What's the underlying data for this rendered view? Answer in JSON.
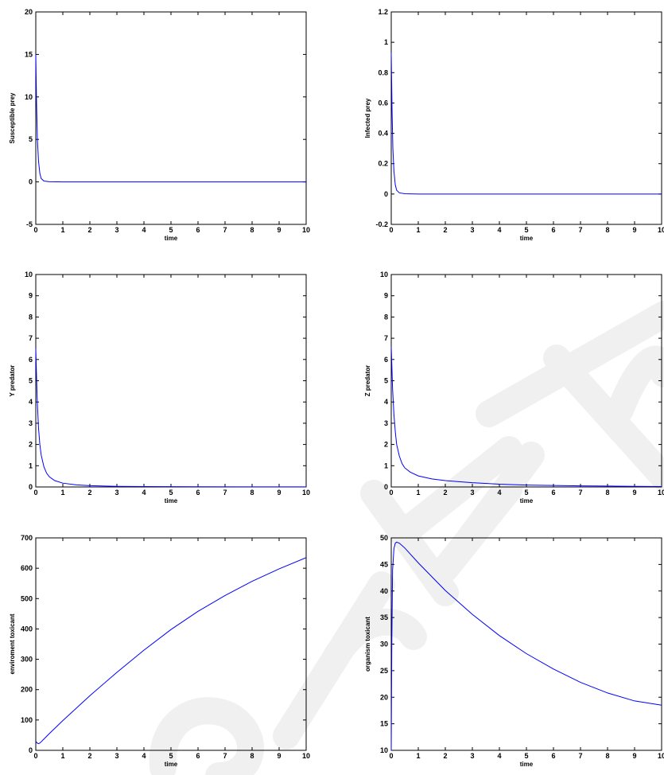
{
  "chart_data": [
    {
      "type": "line",
      "xlabel": "time",
      "ylabel": "Susceptible prey",
      "xlim": [
        0,
        10
      ],
      "ylim": [
        -5,
        20
      ],
      "xticks": [
        "0",
        "1",
        "2",
        "3",
        "4",
        "5",
        "6",
        "7",
        "8",
        "9",
        "10"
      ],
      "yticks": [
        "-5",
        "0",
        "5",
        "10",
        "15",
        "20"
      ],
      "series": [
        {
          "color": "#0000ff",
          "x": [
            0,
            0.03,
            0.06,
            0.1,
            0.15,
            0.2,
            0.3,
            0.5,
            1,
            2,
            4,
            6,
            8,
            10
          ],
          "y": [
            15,
            9,
            5,
            2.5,
            1,
            0.4,
            0.1,
            0.02,
            0,
            0,
            0,
            0,
            0,
            0
          ]
        }
      ]
    },
    {
      "type": "line",
      "xlabel": "time",
      "ylabel": "Infected prey",
      "xlim": [
        0,
        10
      ],
      "ylim": [
        -0.2,
        1.2
      ],
      "xticks": [
        "0",
        "1",
        "2",
        "3",
        "4",
        "5",
        "6",
        "7",
        "8",
        "9",
        "10"
      ],
      "yticks": [
        "-0.2",
        "0",
        "0.2",
        "0.4",
        "0.6",
        "0.8",
        "1",
        "1.2"
      ],
      "series": [
        {
          "color": "#0000ff",
          "x": [
            0,
            0.03,
            0.06,
            0.1,
            0.15,
            0.2,
            0.3,
            0.5,
            1,
            2,
            4,
            6,
            8,
            10
          ],
          "y": [
            0.93,
            0.55,
            0.3,
            0.15,
            0.06,
            0.025,
            0.008,
            0.002,
            0,
            0,
            0,
            0,
            0,
            0
          ]
        }
      ]
    },
    {
      "type": "line",
      "xlabel": "time",
      "ylabel": "Y predator",
      "xlim": [
        0,
        10
      ],
      "ylim": [
        0,
        10
      ],
      "xticks": [
        "0",
        "1",
        "2",
        "3",
        "4",
        "5",
        "6",
        "7",
        "8",
        "9",
        "10"
      ],
      "yticks": [
        "0",
        "1",
        "2",
        "3",
        "4",
        "5",
        "6",
        "7",
        "8",
        "9",
        "10"
      ],
      "series": [
        {
          "color": "#0000ff",
          "x": [
            0,
            0.05,
            0.1,
            0.15,
            0.2,
            0.3,
            0.4,
            0.5,
            0.7,
            1,
            1.5,
            2,
            3,
            4,
            6,
            8,
            10
          ],
          "y": [
            6.5,
            4.2,
            2.8,
            2.0,
            1.5,
            0.95,
            0.65,
            0.48,
            0.3,
            0.18,
            0.1,
            0.06,
            0.03,
            0.02,
            0.01,
            0.005,
            0.003
          ]
        }
      ]
    },
    {
      "type": "line",
      "xlabel": "time",
      "ylabel": "Z predator",
      "xlim": [
        0,
        10
      ],
      "ylim": [
        0,
        10
      ],
      "xticks": [
        "0",
        "1",
        "2",
        "3",
        "4",
        "5",
        "6",
        "7",
        "8",
        "9",
        "10"
      ],
      "yticks": [
        "0",
        "1",
        "2",
        "3",
        "4",
        "5",
        "6",
        "7",
        "8",
        "9",
        "10"
      ],
      "series": [
        {
          "color": "#0000ff",
          "x": [
            0,
            0.05,
            0.1,
            0.15,
            0.2,
            0.3,
            0.4,
            0.5,
            0.7,
            1,
            1.5,
            2,
            2.5,
            3,
            4,
            5,
            6,
            7,
            8,
            9,
            10
          ],
          "y": [
            6.6,
            4.6,
            3.4,
            2.6,
            2.0,
            1.45,
            1.1,
            0.9,
            0.7,
            0.52,
            0.38,
            0.3,
            0.25,
            0.2,
            0.13,
            0.09,
            0.07,
            0.05,
            0.04,
            0.03,
            0.02
          ]
        }
      ]
    },
    {
      "type": "line",
      "xlabel": "time",
      "ylabel": "enviroment toxicant",
      "xlim": [
        0,
        10
      ],
      "ylim": [
        0,
        700
      ],
      "xticks": [
        "0",
        "1",
        "2",
        "3",
        "4",
        "5",
        "6",
        "7",
        "8",
        "9",
        "10"
      ],
      "yticks": [
        "0",
        "100",
        "200",
        "300",
        "400",
        "500",
        "600",
        "700"
      ],
      "series": [
        {
          "color": "#0000ff",
          "x": [
            0,
            0.05,
            0.1,
            0.15,
            0.2,
            0.3,
            0.5,
            1,
            2,
            3,
            4,
            5,
            6,
            7,
            8,
            9,
            10
          ],
          "y": [
            30,
            24,
            22,
            24,
            28,
            37,
            55,
            98,
            180,
            257,
            330,
            398,
            458,
            510,
            557,
            598,
            635
          ]
        }
      ]
    },
    {
      "type": "line",
      "xlabel": "time",
      "ylabel": "organism toxicant",
      "xlim": [
        0,
        10
      ],
      "ylim": [
        10,
        50
      ],
      "xticks": [
        "0",
        "1",
        "2",
        "3",
        "4",
        "5",
        "6",
        "7",
        "8",
        "9",
        "10"
      ],
      "yticks": [
        "10",
        "15",
        "20",
        "25",
        "30",
        "35",
        "40",
        "45",
        "50"
      ],
      "series": [
        {
          "color": "#0000ff",
          "x": [
            0,
            0.02,
            0.05,
            0.1,
            0.15,
            0.2,
            0.3,
            0.5,
            1,
            2,
            3,
            4,
            5,
            6,
            7,
            8,
            9,
            10
          ],
          "y": [
            10,
            30,
            44,
            48,
            49,
            49.2,
            49,
            48.1,
            45.3,
            40.1,
            35.6,
            31.6,
            28.2,
            25.3,
            22.8,
            20.8,
            19.3,
            18.5
          ]
        }
      ]
    }
  ]
}
